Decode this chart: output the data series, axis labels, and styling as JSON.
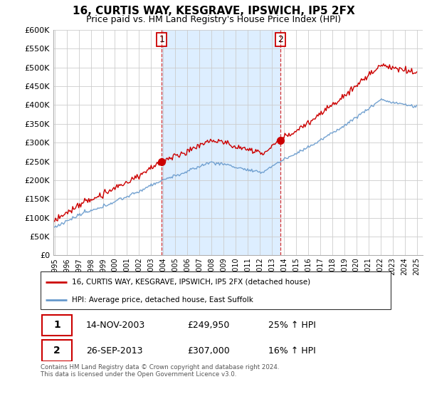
{
  "title": "16, CURTIS WAY, KESGRAVE, IPSWICH, IP5 2FX",
  "subtitle": "Price paid vs. HM Land Registry's House Price Index (HPI)",
  "legend_line1": "16, CURTIS WAY, KESGRAVE, IPSWICH, IP5 2FX (detached house)",
  "legend_line2": "HPI: Average price, detached house, East Suffolk",
  "sale1_date": "14-NOV-2003",
  "sale1_price": "£249,950",
  "sale1_hpi": "25% ↑ HPI",
  "sale2_date": "26-SEP-2013",
  "sale2_price": "£307,000",
  "sale2_hpi": "16% ↑ HPI",
  "footnote": "Contains HM Land Registry data © Crown copyright and database right 2024.\nThis data is licensed under the Open Government Licence v3.0.",
  "hpi_color": "#6699cc",
  "price_color": "#cc0000",
  "shade_color": "#ddeeff",
  "sale1_year": 2003.87,
  "sale2_year": 2013.73,
  "ylim_min": 0,
  "ylim_max": 600000,
  "yticks": [
    0,
    50000,
    100000,
    150000,
    200000,
    250000,
    300000,
    350000,
    400000,
    450000,
    500000,
    550000,
    600000
  ],
  "year_start": 1995,
  "year_end": 2025
}
